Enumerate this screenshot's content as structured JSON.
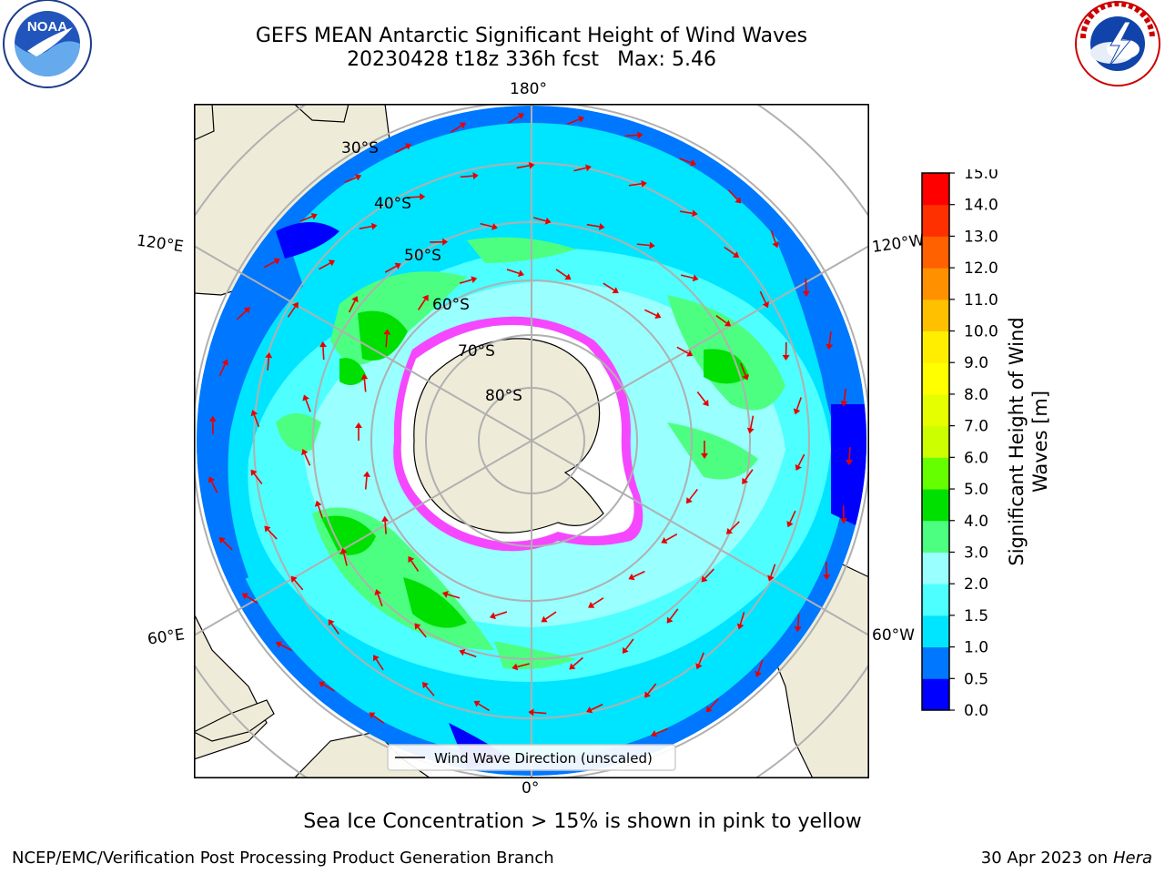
{
  "header": {
    "title_line1": "GEFS MEAN Antarctic Significant Height of Wind Waves",
    "title_line2": "20230428 t18z 336h fcst",
    "max_label": "Max: 5.46"
  },
  "logos": {
    "left": "noaa-logo",
    "left_text": "NOAA",
    "left_ring_text": "NATIONAL OCEANIC AND ATMOSPHERIC ADMINISTRATION · U.S. DEPARTMENT OF COMMERCE",
    "right": "nws-logo",
    "right_ring_text": "NATIONAL WEATHER SERVICE"
  },
  "map": {
    "projection": "south-polar-stereographic",
    "lon_labels": {
      "top": "180°",
      "bottom": "0°",
      "upper_left": "120°E",
      "lower_left": "60°E",
      "upper_right": "120°W",
      "lower_right": "60°W"
    },
    "lat_labels": [
      "30°S",
      "40°S",
      "50°S",
      "60°S",
      "70°S",
      "80°S"
    ],
    "legend_label": "Wind Wave Direction (unscaled)",
    "colors": {
      "land": "#eeecd9",
      "ice": "#ffffff",
      "ice_edge": "#ff33ff",
      "arrow": "#e60000",
      "grid": "#b0b0b0"
    }
  },
  "colorbar": {
    "label_line1": "Significant Height of Wind",
    "label_line2": "Waves [m]",
    "ticks": [
      "0.0",
      "0.5",
      "1.0",
      "1.5",
      "2.0",
      "3.0",
      "4.0",
      "5.0",
      "6.0",
      "7.0",
      "8.0",
      "9.0",
      "10.0",
      "11.0",
      "12.0",
      "13.0",
      "14.0",
      "15.0"
    ],
    "colors": [
      "#0000ff",
      "#0077ff",
      "#00e5ff",
      "#4dffff",
      "#99ffff",
      "#4dff80",
      "#00e000",
      "#66ff00",
      "#ccff00",
      "#e5ff00",
      "#ffff00",
      "#ffee00",
      "#ffc000",
      "#ff9000",
      "#ff6000",
      "#ff3000",
      "#ff0000"
    ]
  },
  "footer": {
    "note": "Sea Ice Concentration > 15% is shown in pink to yellow",
    "branch": "NCEP/EMC/Verification Post Processing Product Generation Branch",
    "date": "30 Apr 2023 on",
    "machine": "Hera"
  }
}
